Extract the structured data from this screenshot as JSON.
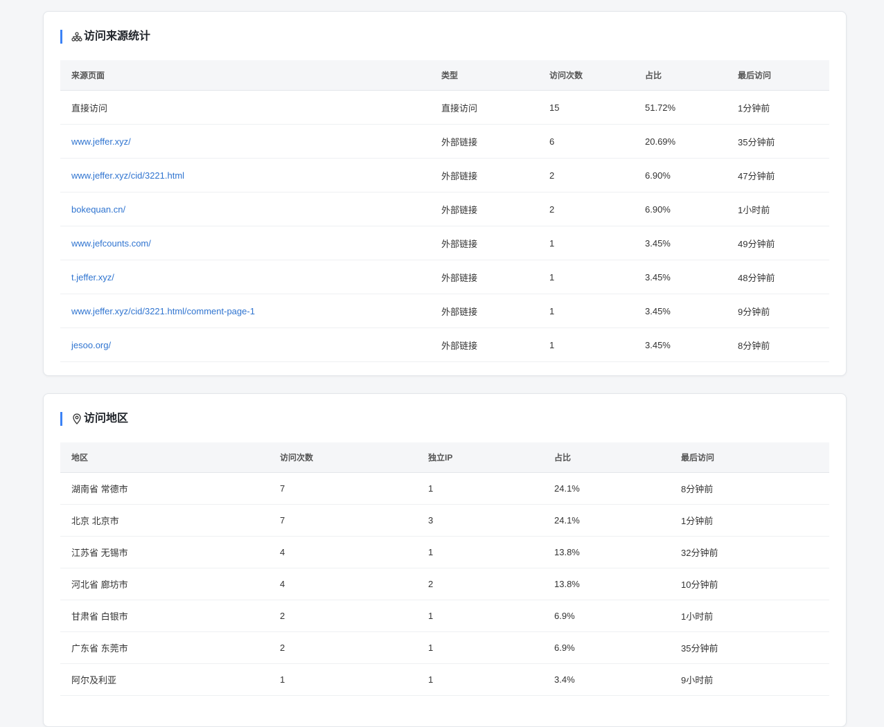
{
  "sources": {
    "title": "访问来源统计",
    "columns": [
      "来源页面",
      "类型",
      "访问次数",
      "占比",
      "最后访问"
    ],
    "rows": [
      [
        "直接访问",
        "直接访问",
        "15",
        "51.72%",
        "1分钟前"
      ],
      [
        "www.jeffer.xyz/",
        "外部链接",
        "6",
        "20.69%",
        "35分钟前"
      ],
      [
        "www.jeffer.xyz/cid/3221.html",
        "外部链接",
        "2",
        "6.90%",
        "47分钟前"
      ],
      [
        "bokequan.cn/",
        "外部链接",
        "2",
        "6.90%",
        "1小时前"
      ],
      [
        "www.jefcounts.com/",
        "外部链接",
        "1",
        "3.45%",
        "49分钟前"
      ],
      [
        "t.jeffer.xyz/",
        "外部链接",
        "1",
        "3.45%",
        "48分钟前"
      ],
      [
        "www.jeffer.xyz/cid/3221.html/comment-page-1",
        "外部链接",
        "1",
        "3.45%",
        "9分钟前"
      ],
      [
        "jesoo.org/",
        "外部链接",
        "1",
        "3.45%",
        "8分钟前"
      ]
    ]
  },
  "regions": {
    "title": "访问地区",
    "columns": [
      "地区",
      "访问次数",
      "独立IP",
      "占比",
      "最后访问"
    ],
    "rows": [
      [
        "湖南省 常德市",
        "7",
        "1",
        "24.1%",
        "8分钟前"
      ],
      [
        "北京 北京市",
        "7",
        "3",
        "24.1%",
        "1分钟前"
      ],
      [
        "江苏省 无锡市",
        "4",
        "1",
        "13.8%",
        "32分钟前"
      ],
      [
        "河北省 廊坊市",
        "4",
        "2",
        "13.8%",
        "10分钟前"
      ],
      [
        "甘肃省 白银市",
        "2",
        "1",
        "6.9%",
        "1小时前"
      ],
      [
        "广东省 东莞市",
        "2",
        "1",
        "6.9%",
        "35分钟前"
      ],
      [
        "阿尔及利亚",
        "1",
        "1",
        "3.4%",
        "9小时前"
      ]
    ]
  }
}
